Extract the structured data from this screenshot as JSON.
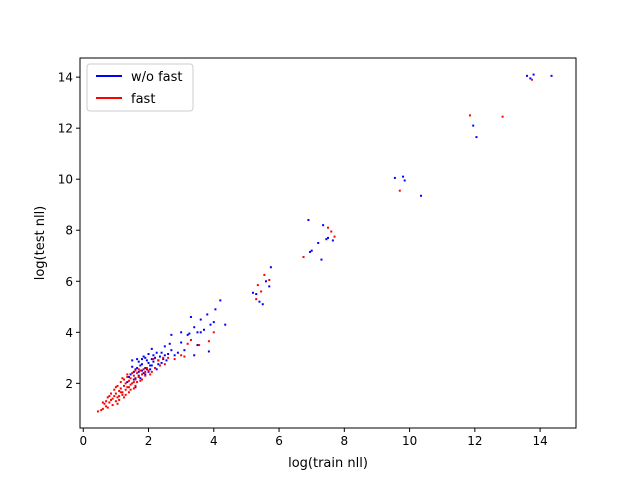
{
  "chart_data": {
    "type": "scatter",
    "title": "",
    "xlabel": "log(train nll)",
    "ylabel": "log(test nll)",
    "xlim": [
      -0.1,
      15.1
    ],
    "ylim": [
      0.25,
      14.75
    ],
    "xticks": [
      0,
      2,
      4,
      6,
      8,
      10,
      12,
      14
    ],
    "yticks": [
      2,
      4,
      6,
      8,
      10,
      12,
      14
    ],
    "grid": false,
    "legend_position": "upper-left",
    "series": [
      {
        "name": "w/o fast",
        "color": "#0000ff",
        "marker_size": 2,
        "points": [
          [
            1.6,
            2.2
          ],
          [
            1.7,
            2.3
          ],
          [
            1.8,
            2.5
          ],
          [
            1.9,
            2.6
          ],
          [
            1.75,
            2.7
          ],
          [
            2.0,
            2.8
          ],
          [
            2.1,
            2.7
          ],
          [
            1.85,
            2.4
          ],
          [
            1.95,
            2.9
          ],
          [
            2.2,
            3.0
          ],
          [
            2.3,
            2.9
          ],
          [
            2.05,
            2.55
          ],
          [
            1.65,
            2.6
          ],
          [
            1.55,
            2.45
          ],
          [
            2.4,
            2.8
          ],
          [
            2.15,
            3.1
          ],
          [
            2.25,
            3.2
          ],
          [
            1.9,
            3.0
          ],
          [
            1.7,
            2.85
          ],
          [
            2.0,
            2.45
          ],
          [
            2.35,
            3.05
          ],
          [
            1.8,
            2.75
          ],
          [
            1.6,
            2.55
          ],
          [
            1.45,
            2.35
          ],
          [
            1.5,
            2.65
          ],
          [
            2.1,
            2.95
          ],
          [
            1.85,
            3.05
          ],
          [
            2.45,
            2.95
          ],
          [
            2.5,
            3.1
          ],
          [
            1.75,
            2.2
          ],
          [
            1.95,
            2.55
          ],
          [
            2.05,
            2.7
          ],
          [
            2.3,
            2.75
          ],
          [
            1.65,
            2.95
          ],
          [
            1.55,
            2.15
          ],
          [
            1.4,
            2.25
          ],
          [
            2.2,
            2.6
          ],
          [
            2.6,
            3.15
          ],
          [
            1.9,
            2.35
          ],
          [
            2.0,
            3.15
          ],
          [
            2.55,
            2.9
          ],
          [
            2.4,
            3.2
          ],
          [
            1.8,
            2.95
          ],
          [
            1.7,
            2.45
          ],
          [
            2.15,
            2.85
          ],
          [
            1.5,
            2.9
          ],
          [
            2.1,
            3.35
          ],
          [
            2.25,
            2.55
          ],
          [
            1.35,
            2.05
          ],
          [
            1.6,
            1.85
          ],
          [
            2.7,
            3.3
          ],
          [
            2.8,
            3.1
          ],
          [
            2.5,
            3.45
          ],
          [
            2.9,
            3.2
          ],
          [
            3.0,
            3.6
          ],
          [
            2.65,
            3.55
          ],
          [
            3.0,
            4.0
          ],
          [
            3.2,
            3.9
          ],
          [
            3.4,
            4.2
          ],
          [
            3.6,
            4.5
          ],
          [
            3.5,
            4.0
          ],
          [
            3.3,
            4.6
          ],
          [
            3.8,
            4.7
          ],
          [
            3.9,
            4.3
          ],
          [
            4.05,
            4.9
          ],
          [
            4.2,
            5.25
          ],
          [
            4.0,
            4.4
          ],
          [
            3.7,
            4.1
          ],
          [
            4.35,
            4.3
          ],
          [
            3.1,
            3.3
          ],
          [
            3.5,
            3.5
          ],
          [
            3.85,
            3.25
          ],
          [
            3.4,
            3.1
          ],
          [
            2.7,
            3.9
          ],
          [
            3.6,
            4.0
          ],
          [
            3.25,
            3.95
          ],
          [
            5.3,
            5.5
          ],
          [
            5.4,
            5.2
          ],
          [
            5.6,
            6.0
          ],
          [
            5.7,
            5.8
          ],
          [
            5.75,
            6.55
          ],
          [
            5.5,
            5.1
          ],
          [
            5.2,
            5.55
          ],
          [
            6.9,
            8.4
          ],
          [
            7.0,
            7.2
          ],
          [
            7.2,
            7.5
          ],
          [
            7.35,
            8.2
          ],
          [
            7.45,
            7.65
          ],
          [
            7.3,
            6.85
          ],
          [
            7.5,
            7.7
          ],
          [
            7.65,
            7.6
          ],
          [
            6.95,
            7.15
          ],
          [
            9.55,
            10.05
          ],
          [
            9.8,
            10.1
          ],
          [
            9.85,
            9.95
          ],
          [
            10.35,
            9.35
          ],
          [
            11.95,
            12.1
          ],
          [
            12.05,
            11.65
          ],
          [
            13.6,
            14.05
          ],
          [
            13.8,
            14.1
          ],
          [
            14.35,
            14.05
          ],
          [
            13.7,
            13.95
          ]
        ]
      },
      {
        "name": "fast",
        "color": "#ff0000",
        "marker_size": 2,
        "points": [
          [
            0.45,
            0.9
          ],
          [
            0.55,
            0.95
          ],
          [
            0.6,
            1.0
          ],
          [
            0.7,
            1.1
          ],
          [
            0.65,
            1.2
          ],
          [
            0.8,
            1.25
          ],
          [
            0.85,
            1.35
          ],
          [
            0.75,
            1.05
          ],
          [
            0.9,
            1.4
          ],
          [
            0.95,
            1.5
          ],
          [
            1.0,
            1.6
          ],
          [
            1.05,
            1.45
          ],
          [
            1.1,
            1.7
          ],
          [
            1.15,
            1.8
          ],
          [
            1.2,
            1.65
          ],
          [
            1.25,
            1.9
          ],
          [
            1.3,
            2.0
          ],
          [
            1.35,
            1.85
          ],
          [
            1.4,
            2.1
          ],
          [
            1.45,
            2.2
          ],
          [
            1.5,
            2.0
          ],
          [
            1.55,
            2.3
          ],
          [
            1.6,
            2.15
          ],
          [
            1.65,
            2.4
          ],
          [
            1.7,
            2.25
          ],
          [
            1.75,
            2.5
          ],
          [
            1.8,
            2.35
          ],
          [
            1.85,
            2.55
          ],
          [
            1.9,
            2.45
          ],
          [
            1.95,
            2.6
          ],
          [
            2.0,
            2.5
          ],
          [
            1.0,
            1.3
          ],
          [
            1.1,
            1.5
          ],
          [
            1.2,
            1.55
          ],
          [
            1.3,
            1.75
          ],
          [
            1.4,
            1.85
          ],
          [
            0.9,
            1.15
          ],
          [
            0.7,
            1.3
          ],
          [
            1.05,
            1.9
          ],
          [
            1.15,
            2.05
          ],
          [
            1.25,
            2.15
          ],
          [
            1.35,
            2.25
          ],
          [
            1.45,
            1.95
          ],
          [
            1.55,
            2.05
          ],
          [
            1.6,
            1.9
          ],
          [
            1.75,
            2.1
          ],
          [
            0.85,
            1.6
          ],
          [
            0.95,
            1.75
          ],
          [
            1.2,
            2.2
          ],
          [
            1.5,
            2.4
          ],
          [
            1.65,
            2.05
          ],
          [
            1.8,
            2.15
          ],
          [
            1.3,
            1.55
          ],
          [
            1.0,
            1.85
          ],
          [
            0.8,
            1.5
          ],
          [
            1.1,
            1.35
          ],
          [
            1.7,
            2.55
          ],
          [
            1.9,
            2.3
          ],
          [
            1.45,
            1.75
          ],
          [
            1.25,
            1.45
          ],
          [
            1.05,
            1.2
          ],
          [
            1.35,
            2.35
          ],
          [
            1.15,
            1.65
          ],
          [
            0.6,
            1.25
          ],
          [
            1.55,
            1.8
          ],
          [
            2.05,
            2.35
          ],
          [
            2.1,
            2.45
          ],
          [
            1.6,
            2.5
          ],
          [
            1.4,
            1.65
          ],
          [
            0.75,
            1.45
          ],
          [
            2.2,
            2.6
          ],
          [
            2.35,
            2.7
          ],
          [
            2.5,
            2.75
          ],
          [
            2.3,
            2.9
          ],
          [
            2.6,
            3.0
          ],
          [
            2.15,
            2.95
          ],
          [
            2.8,
            2.95
          ],
          [
            3.0,
            3.1
          ],
          [
            3.1,
            3.05
          ],
          [
            2.45,
            3.0
          ],
          [
            3.3,
            3.7
          ],
          [
            3.55,
            3.5
          ],
          [
            3.85,
            3.65
          ],
          [
            4.0,
            4.0
          ],
          [
            3.2,
            3.55
          ],
          [
            5.3,
            5.3
          ],
          [
            5.45,
            5.6
          ],
          [
            5.55,
            6.25
          ],
          [
            5.7,
            6.05
          ],
          [
            5.35,
            5.85
          ],
          [
            6.75,
            6.95
          ],
          [
            7.5,
            8.1
          ],
          [
            7.7,
            7.75
          ],
          [
            7.6,
            7.95
          ],
          [
            9.7,
            9.55
          ],
          [
            11.85,
            12.5
          ],
          [
            12.85,
            12.45
          ],
          [
            13.75,
            13.9
          ]
        ]
      }
    ]
  }
}
